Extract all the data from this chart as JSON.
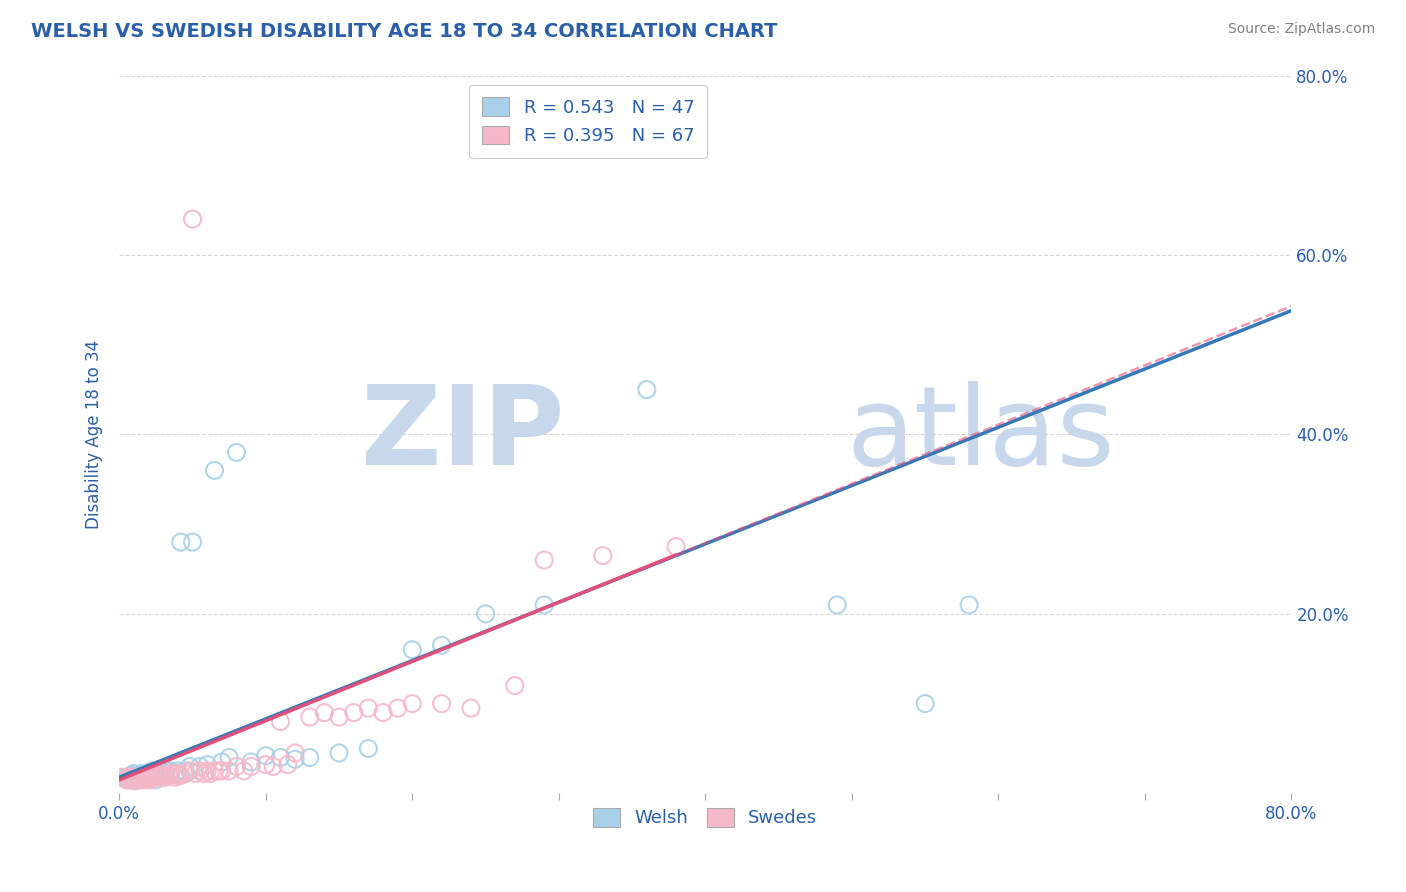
{
  "title": "WELSH VS SWEDISH DISABILITY AGE 18 TO 34 CORRELATION CHART",
  "source": "Source: ZipAtlas.com",
  "ylabel": "Disability Age 18 to 34",
  "xlim": [
    0.0,
    0.8
  ],
  "ylim": [
    0.0,
    0.8
  ],
  "welsh_R": 0.543,
  "welsh_N": 47,
  "swedes_R": 0.395,
  "swedes_N": 67,
  "welsh_color": "#a8d0e8",
  "swedes_color": "#f4b8c8",
  "welsh_line_color": "#3579b8",
  "swedes_line_color": "#e0507a",
  "welsh_scatter_x": [
    0.005,
    0.008,
    0.01,
    0.01,
    0.012,
    0.013,
    0.015,
    0.016,
    0.018,
    0.02,
    0.02,
    0.022,
    0.022,
    0.025,
    0.025,
    0.028,
    0.03,
    0.03,
    0.032,
    0.035,
    0.038,
    0.04,
    0.042,
    0.045,
    0.048,
    0.05,
    0.055,
    0.06,
    0.065,
    0.07,
    0.075,
    0.08,
    0.09,
    0.1,
    0.11,
    0.12,
    0.13,
    0.15,
    0.17,
    0.2,
    0.22,
    0.25,
    0.29,
    0.36,
    0.49,
    0.55,
    0.58
  ],
  "welsh_scatter_y": [
    0.018,
    0.02,
    0.015,
    0.022,
    0.018,
    0.02,
    0.022,
    0.018,
    0.02,
    0.018,
    0.022,
    0.025,
    0.02,
    0.022,
    0.015,
    0.025,
    0.022,
    0.018,
    0.025,
    0.025,
    0.022,
    0.025,
    0.28,
    0.025,
    0.03,
    0.28,
    0.03,
    0.032,
    0.36,
    0.035,
    0.04,
    0.38,
    0.035,
    0.042,
    0.04,
    0.038,
    0.04,
    0.045,
    0.05,
    0.16,
    0.165,
    0.2,
    0.21,
    0.45,
    0.21,
    0.1,
    0.21
  ],
  "swedes_scatter_x": [
    0.002,
    0.005,
    0.006,
    0.007,
    0.008,
    0.009,
    0.01,
    0.01,
    0.012,
    0.012,
    0.013,
    0.015,
    0.015,
    0.016,
    0.018,
    0.018,
    0.02,
    0.02,
    0.022,
    0.022,
    0.025,
    0.025,
    0.028,
    0.028,
    0.03,
    0.03,
    0.032,
    0.035,
    0.035,
    0.038,
    0.04,
    0.04,
    0.042,
    0.045,
    0.048,
    0.05,
    0.052,
    0.055,
    0.058,
    0.06,
    0.062,
    0.065,
    0.068,
    0.07,
    0.075,
    0.08,
    0.085,
    0.09,
    0.1,
    0.105,
    0.11,
    0.115,
    0.12,
    0.13,
    0.14,
    0.15,
    0.16,
    0.17,
    0.18,
    0.19,
    0.2,
    0.22,
    0.24,
    0.27,
    0.29,
    0.33,
    0.38
  ],
  "swedes_scatter_y": [
    0.018,
    0.015,
    0.018,
    0.015,
    0.016,
    0.018,
    0.014,
    0.018,
    0.015,
    0.018,
    0.015,
    0.016,
    0.018,
    0.015,
    0.016,
    0.018,
    0.015,
    0.018,
    0.016,
    0.02,
    0.018,
    0.02,
    0.018,
    0.02,
    0.018,
    0.02,
    0.018,
    0.02,
    0.022,
    0.018,
    0.02,
    0.022,
    0.02,
    0.022,
    0.025,
    0.64,
    0.022,
    0.025,
    0.022,
    0.025,
    0.022,
    0.025,
    0.025,
    0.025,
    0.025,
    0.03,
    0.025,
    0.03,
    0.032,
    0.03,
    0.08,
    0.032,
    0.045,
    0.085,
    0.09,
    0.085,
    0.09,
    0.095,
    0.09,
    0.095,
    0.1,
    0.1,
    0.095,
    0.12,
    0.26,
    0.265,
    0.275
  ],
  "background_color": "#ffffff",
  "grid_color": "#cccccc",
  "title_color": "#2b5fa8",
  "axis_color": "#2b5fa8",
  "watermark_zip_color": "#c8d8ec",
  "watermark_atlas_color": "#c8d8ec",
  "watermark_fontsize": 80
}
